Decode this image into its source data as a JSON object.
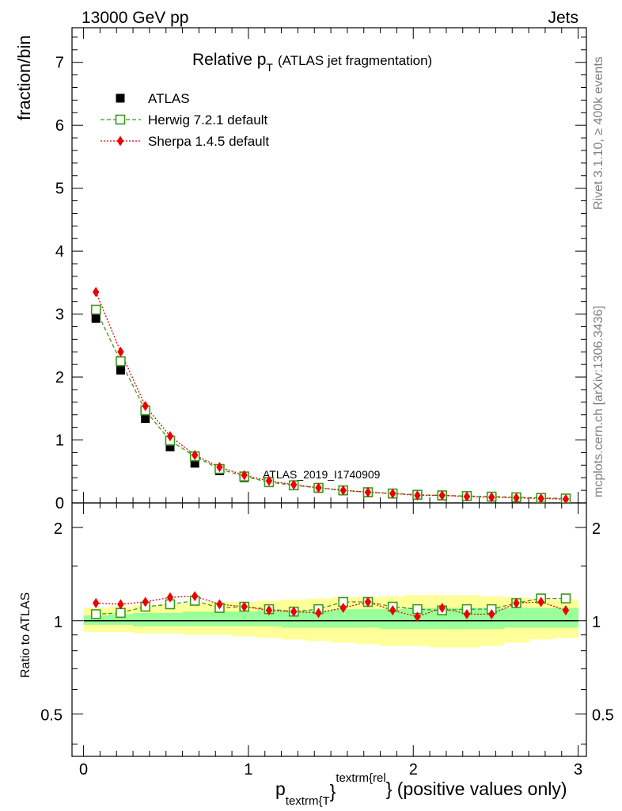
{
  "header": {
    "left": "13000 GeV pp",
    "right": "Jets"
  },
  "side_labels": {
    "rivet": "Rivet 3.1.10, ≥ 400k events",
    "mcplots": "mcplots.cern.ch [arXiv:1306.3436]"
  },
  "colors": {
    "atlas": "#000000",
    "herwig": "#3a9a1a",
    "sherpa": "#ee0000",
    "band_inner": "#99ff99",
    "band_outer": "#ffff99",
    "watermark": "#999999"
  },
  "chart_data": [
    {
      "type": "scatter",
      "panel": "main",
      "title_main": "Relative p",
      "title_sub": "T",
      "title_rest": "(ATLAS jet fragmentation)",
      "ylabel": "fraction/bin",
      "watermark": "ATLAS_2019_I1740909",
      "xlim": [
        -0.07,
        3.05
      ],
      "ylim": [
        0,
        7.55
      ],
      "y_ticks": [
        0,
        1,
        2,
        3,
        4,
        5,
        6,
        7
      ],
      "x": [
        0.075,
        0.225,
        0.375,
        0.525,
        0.675,
        0.825,
        0.975,
        1.125,
        1.275,
        1.425,
        1.575,
        1.725,
        1.875,
        2.025,
        2.175,
        2.325,
        2.475,
        2.625,
        2.775,
        2.925
      ],
      "legend": [
        {
          "name": "ATLAS",
          "key": "atlas"
        },
        {
          "name": "Herwig 7.2.1 default",
          "key": "herwig"
        },
        {
          "name": "Sherpa 1.4.5 default",
          "key": "sherpa"
        }
      ],
      "series": [
        {
          "name": "ATLAS",
          "key": "atlas",
          "marker": "filled-square",
          "values": [
            2.93,
            2.11,
            1.34,
            0.89,
            0.63,
            0.51,
            0.4,
            0.32,
            0.27,
            0.23,
            0.19,
            0.16,
            0.14,
            0.12,
            0.11,
            0.1,
            0.09,
            0.08,
            0.07,
            0.06
          ]
        },
        {
          "name": "Herwig 7.2.1 default",
          "key": "herwig",
          "marker": "open-square",
          "line": "dashed",
          "values": [
            3.07,
            2.25,
            1.47,
            0.99,
            0.74,
            0.54,
            0.42,
            0.33,
            0.28,
            0.24,
            0.2,
            0.17,
            0.15,
            0.13,
            0.12,
            0.11,
            0.1,
            0.09,
            0.08,
            0.07
          ]
        },
        {
          "name": "Sherpa 1.4.5 default",
          "key": "sherpa",
          "marker": "filled-diamond",
          "line": "dotted",
          "values": [
            3.35,
            2.4,
            1.54,
            1.06,
            0.76,
            0.57,
            0.44,
            0.35,
            0.29,
            0.24,
            0.2,
            0.17,
            0.15,
            0.12,
            0.12,
            0.1,
            0.09,
            0.08,
            0.07,
            0.06
          ]
        }
      ]
    },
    {
      "type": "scatter",
      "panel": "ratio",
      "ylabel": "Ratio to ATLAS",
      "xlabel_main": "p",
      "xlabel_sub": "textrm{T",
      "xlabel_sup": "textrm{rel",
      "xlabel_brace": "}",
      "xlabel_rest": "} (positive values only)",
      "xlim": [
        -0.07,
        3.05
      ],
      "ylim": [
        0.365,
        2.4
      ],
      "y_scale": "log",
      "y_ticks": [
        0.5,
        1,
        2
      ],
      "y_tick_labels": [
        "0.5",
        "1",
        "2"
      ],
      "x_ticks": [
        0,
        1,
        2,
        3
      ],
      "x_tick_labels": [
        "0",
        "1",
        "2",
        "3"
      ],
      "x_edges": [
        0.0,
        0.15,
        0.3,
        0.45,
        0.6,
        0.75,
        0.9,
        1.05,
        1.2,
        1.35,
        1.5,
        1.65,
        1.8,
        1.95,
        2.1,
        2.25,
        2.4,
        2.55,
        2.7,
        2.85,
        3.0
      ],
      "band_inner_low": [
        0.97,
        0.97,
        0.96,
        0.96,
        0.96,
        0.96,
        0.96,
        0.96,
        0.95,
        0.95,
        0.95,
        0.95,
        0.94,
        0.94,
        0.94,
        0.94,
        0.94,
        0.95,
        0.95,
        0.95
      ],
      "band_inner_high": [
        1.04,
        1.05,
        1.06,
        1.06,
        1.07,
        1.07,
        1.07,
        1.08,
        1.08,
        1.08,
        1.09,
        1.09,
        1.09,
        1.1,
        1.1,
        1.1,
        1.1,
        1.1,
        1.1,
        1.1
      ],
      "band_outer_low": [
        0.92,
        0.92,
        0.91,
        0.91,
        0.9,
        0.9,
        0.89,
        0.88,
        0.87,
        0.86,
        0.85,
        0.84,
        0.83,
        0.83,
        0.82,
        0.82,
        0.83,
        0.85,
        0.87,
        0.88
      ],
      "band_outer_high": [
        1.1,
        1.11,
        1.12,
        1.13,
        1.14,
        1.15,
        1.15,
        1.16,
        1.17,
        1.18,
        1.19,
        1.19,
        1.2,
        1.21,
        1.21,
        1.21,
        1.2,
        1.19,
        1.18,
        1.17
      ],
      "x": [
        0.075,
        0.225,
        0.375,
        0.525,
        0.675,
        0.825,
        0.975,
        1.125,
        1.275,
        1.425,
        1.575,
        1.725,
        1.875,
        2.025,
        2.175,
        2.325,
        2.475,
        2.625,
        2.775,
        2.925
      ],
      "series": [
        {
          "name": "Herwig 7.2.1 default",
          "key": "herwig",
          "marker": "open-square",
          "line": "dashed",
          "values": [
            1.05,
            1.06,
            1.11,
            1.13,
            1.16,
            1.1,
            1.11,
            1.09,
            1.07,
            1.09,
            1.15,
            1.15,
            1.11,
            1.09,
            1.08,
            1.09,
            1.09,
            1.14,
            1.18,
            1.18
          ]
        },
        {
          "name": "Sherpa 1.4.5 default",
          "key": "sherpa",
          "marker": "filled-diamond",
          "line": "dotted",
          "values": [
            1.14,
            1.13,
            1.15,
            1.19,
            1.2,
            1.13,
            1.11,
            1.08,
            1.07,
            1.06,
            1.1,
            1.15,
            1.08,
            1.03,
            1.1,
            1.05,
            1.05,
            1.14,
            1.15,
            1.08
          ]
        }
      ]
    }
  ]
}
